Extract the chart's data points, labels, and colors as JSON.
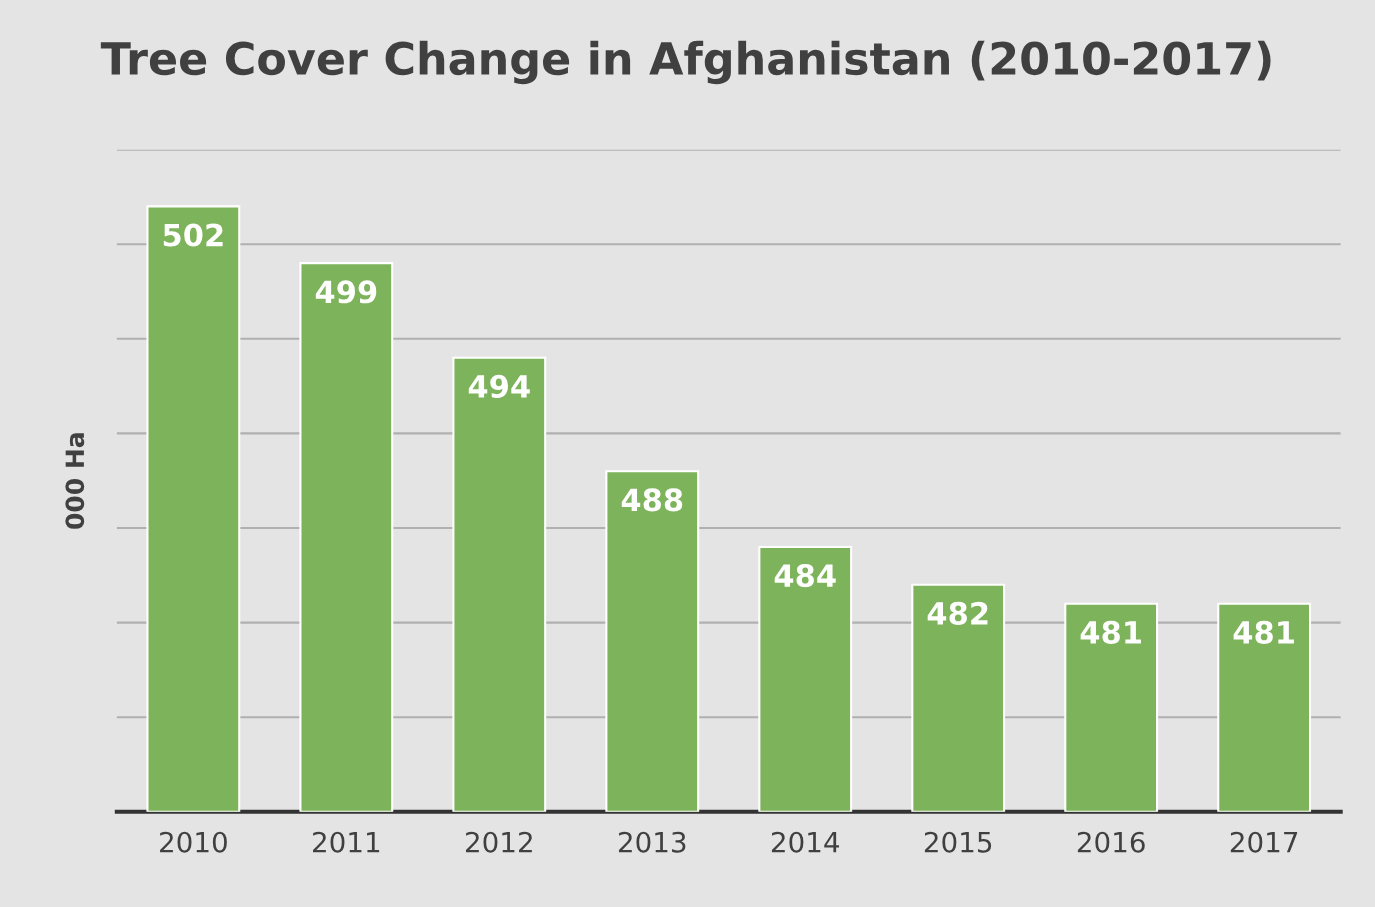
{
  "chart_data": {
    "type": "bar",
    "title": "Tree Cover Change in Afghanistan (2010-2017)",
    "ylabel": "000 Ha",
    "categories": [
      "2010",
      "2011",
      "2012",
      "2013",
      "2014",
      "2015",
      "2016",
      "2017"
    ],
    "values": [
      502,
      499,
      494,
      488,
      484,
      482,
      481,
      481
    ],
    "color": "#7db35a",
    "ylim": [
      470,
      505
    ],
    "yticks": [
      {
        "value": 470,
        "label": null
      },
      {
        "value": 475,
        "label": null
      },
      {
        "value": 480,
        "label": null
      },
      {
        "value": 485,
        "label": null
      },
      {
        "value": 490,
        "label": null
      },
      {
        "value": 495,
        "label": null
      },
      {
        "value": 500,
        "label": null
      },
      {
        "value": 505,
        "label": null
      }
    ],
    "tick_labels": "x",
    "grid": "y",
    "data_labels": true
  }
}
